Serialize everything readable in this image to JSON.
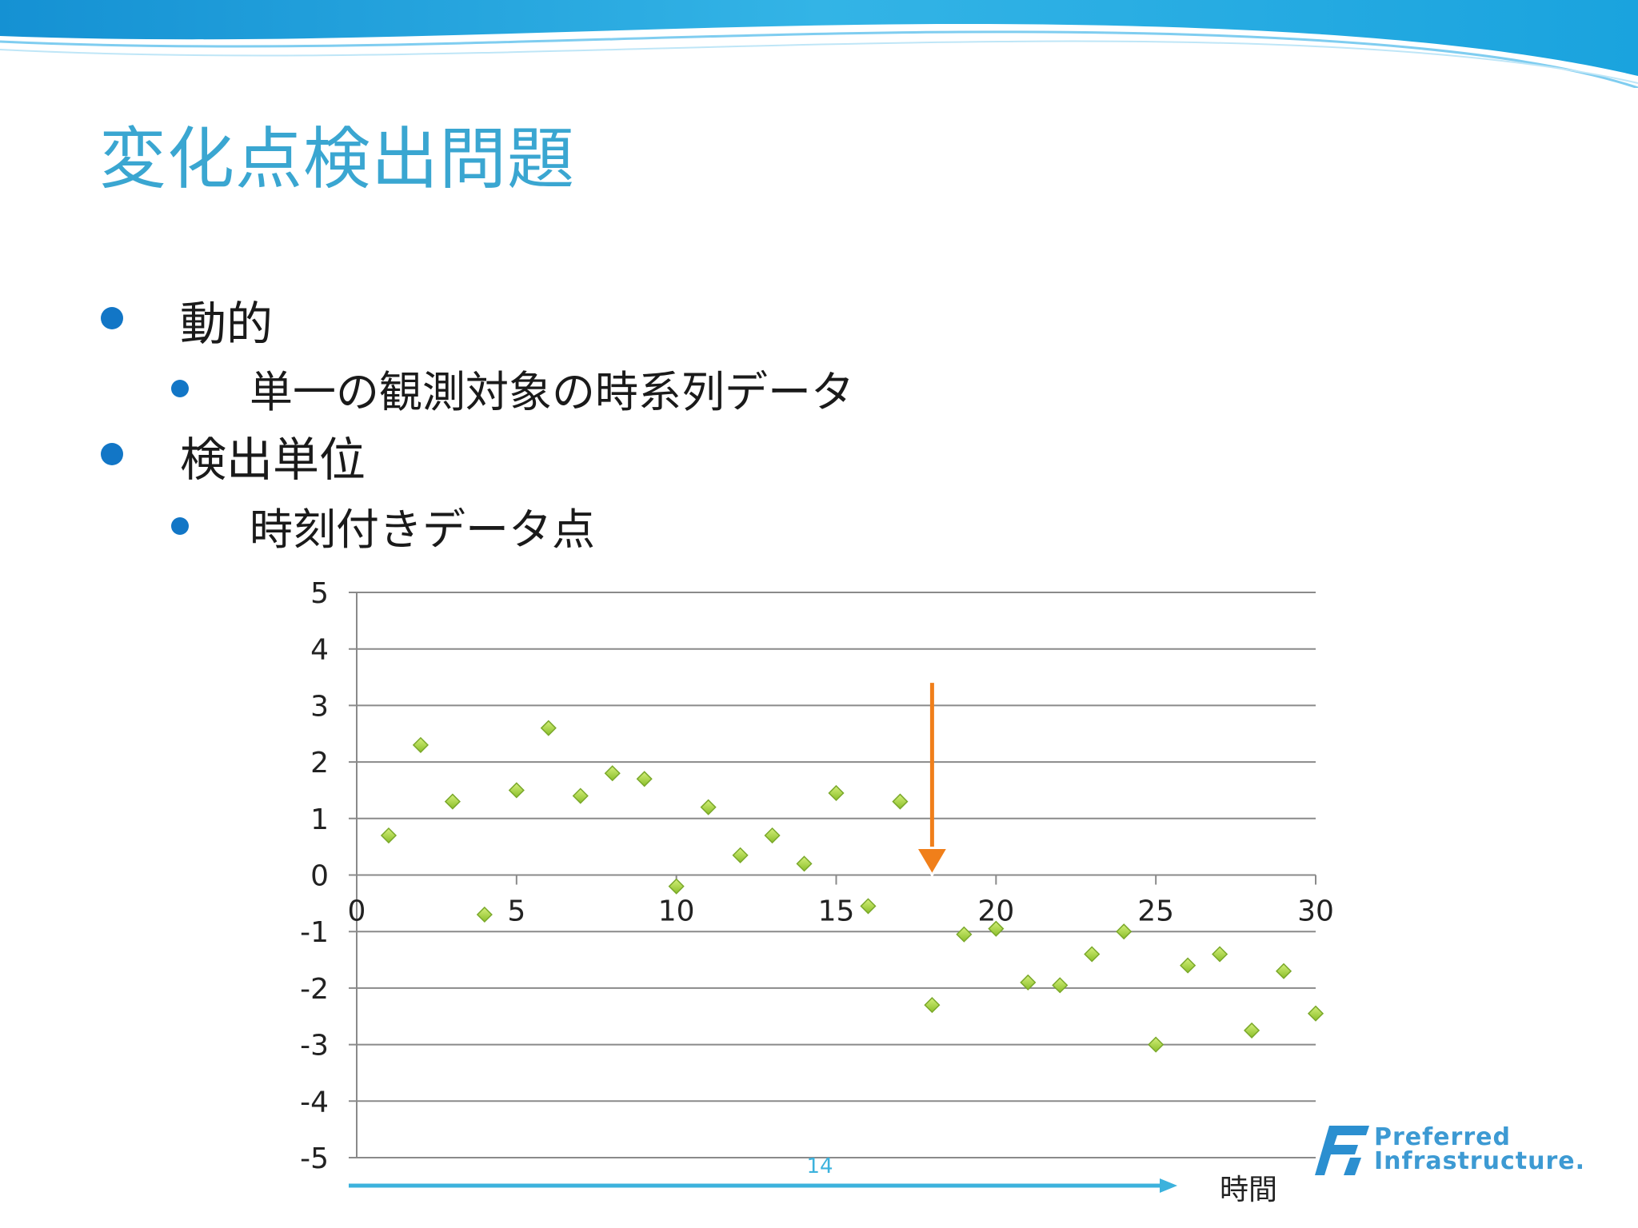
{
  "slide": {
    "title": "変化点検出問題",
    "bullets": [
      {
        "level": 1,
        "text": "動的"
      },
      {
        "level": 2,
        "text": "単一の観測対象の時系列データ"
      },
      {
        "level": 1,
        "text": "検出単位"
      },
      {
        "level": 2,
        "text": "時刻付きデータ点"
      }
    ]
  },
  "chart_data": {
    "type": "scatter",
    "xlim": [
      0,
      30
    ],
    "ylim": [
      -5,
      5
    ],
    "x_ticks": [
      0,
      5,
      10,
      15,
      20,
      25,
      30
    ],
    "y_ticks": [
      5,
      4,
      3,
      2,
      1,
      0,
      -1,
      -2,
      -3,
      -4,
      -5
    ],
    "grid": true,
    "marker": "diamond",
    "marker_color": "#9fcc3b",
    "points": [
      {
        "x": 1,
        "y": 0.7
      },
      {
        "x": 2,
        "y": 2.3
      },
      {
        "x": 3,
        "y": 1.3
      },
      {
        "x": 4,
        "y": -0.7
      },
      {
        "x": 5,
        "y": 1.5
      },
      {
        "x": 6,
        "y": 2.6
      },
      {
        "x": 7,
        "y": 1.4
      },
      {
        "x": 8,
        "y": 1.8
      },
      {
        "x": 9,
        "y": 1.7
      },
      {
        "x": 10,
        "y": -0.2
      },
      {
        "x": 11,
        "y": 1.2
      },
      {
        "x": 12,
        "y": 0.35
      },
      {
        "x": 13,
        "y": 0.7
      },
      {
        "x": 14,
        "y": 0.2
      },
      {
        "x": 15,
        "y": 1.45
      },
      {
        "x": 16,
        "y": -0.55
      },
      {
        "x": 17,
        "y": 1.3
      },
      {
        "x": 18,
        "y": -2.3
      },
      {
        "x": 19,
        "y": -1.05
      },
      {
        "x": 20,
        "y": -0.95
      },
      {
        "x": 21,
        "y": -1.9
      },
      {
        "x": 22,
        "y": -1.95
      },
      {
        "x": 23,
        "y": -1.4
      },
      {
        "x": 24,
        "y": -1.0
      },
      {
        "x": 25,
        "y": -3.0
      },
      {
        "x": 26,
        "y": -1.6
      },
      {
        "x": 27,
        "y": -1.4
      },
      {
        "x": 28,
        "y": -2.75
      },
      {
        "x": 29,
        "y": -1.7
      },
      {
        "x": 30,
        "y": -2.45
      }
    ],
    "change_point_arrow": {
      "x": 18,
      "y_from": 3.4,
      "y_to": 0,
      "color": "#f07f1a"
    },
    "time_arrow": {
      "label": "14",
      "color": "#3cb2dd"
    },
    "xlabel": "時間"
  },
  "logo": {
    "line1": "Preferred",
    "line2": "Infrastructure."
  }
}
